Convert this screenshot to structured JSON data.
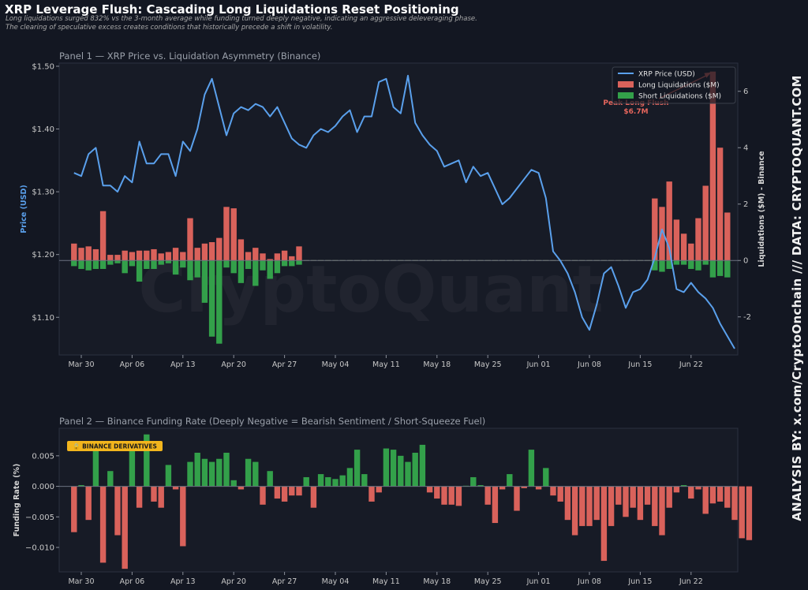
{
  "header": {
    "title": "XRP Leverage Flush: Cascading Long Liquidations Reset Positioning",
    "subtitle_1": "Long liquidations surged 832% vs the 3-month average while funding turned deeply negative, indicating an aggressive deleveraging phase.",
    "subtitle_2": "The clearing of speculative excess creates conditions that historically precede a shift in volatility."
  },
  "side_credit": "ANALYSIS BY: x.com/CryptoOnchain   ///   DATA: CRYPTOQUANT.COM",
  "watermark": "CryptoQuant",
  "colors": {
    "background": "#131722",
    "panel": "#171b26",
    "price_line": "#5aa0ec",
    "long_liq": "#d9625b",
    "short_liq": "#33a04a",
    "funding_pos": "#33a04a",
    "funding_neg": "#d9625b",
    "annotation": "#e5655c",
    "badge": "#f2b51d"
  },
  "chart_data": [
    {
      "type": "line",
      "title": "Panel 1 — XRP Price vs. Liquidation Asymmetry (Binance)",
      "ylabel": "Price (USD)",
      "y2label": "Liquidations ($M) - Binance",
      "x_ticks": [
        "Mar 30",
        "Apr 06",
        "Apr 13",
        "Apr 20",
        "Apr 27",
        "May 04",
        "May 11",
        "May 18",
        "May 25",
        "Jun 01",
        "Jun 08",
        "Jun 15",
        "Jun 22"
      ],
      "x_range": [
        "2025-03-27",
        "2025-06-27"
      ],
      "ylim": [
        1.04,
        1.505
      ],
      "y_ticks": [
        1.1,
        1.2,
        1.3,
        1.4,
        1.5
      ],
      "y_tick_labels": [
        "$1.10",
        "$1.20",
        "$1.30",
        "$1.40",
        "$1.50"
      ],
      "y2lim": [
        -3.35,
        7.0
      ],
      "y2_ticks": [
        -2,
        0,
        2,
        4,
        6
      ],
      "grid": false,
      "legend": "top-right",
      "series": [
        {
          "name": "XRP Price (USD)",
          "kind": "line",
          "x_start": "2025-03-29",
          "step_days": 1,
          "values": [
            1.33,
            1.325,
            1.36,
            1.37,
            1.31,
            1.31,
            1.3,
            1.325,
            1.315,
            1.38,
            1.345,
            1.345,
            1.36,
            1.36,
            1.325,
            1.38,
            1.365,
            1.4,
            1.455,
            1.48,
            1.435,
            1.39,
            1.425,
            1.435,
            1.43,
            1.44,
            1.435,
            1.42,
            1.435,
            1.41,
            1.385,
            1.375,
            1.37,
            1.39,
            1.4,
            1.395,
            1.405,
            1.42,
            1.43,
            1.395,
            1.42,
            1.42,
            1.475,
            1.48,
            1.435,
            1.425,
            1.485,
            1.41,
            1.39,
            1.375,
            1.365,
            1.34,
            1.345,
            1.35,
            1.315,
            1.34,
            1.325,
            1.33,
            1.305,
            1.28,
            1.29,
            1.305,
            1.32,
            1.335,
            1.33,
            1.29,
            1.205,
            1.19,
            1.17,
            1.14,
            1.1,
            1.08,
            1.12,
            1.17,
            1.18,
            1.15,
            1.115,
            1.14,
            1.145,
            1.16,
            1.195,
            1.24,
            1.21,
            1.145,
            1.14,
            1.155,
            1.14,
            1.13,
            1.115,
            1.09,
            1.07,
            1.05
          ]
        },
        {
          "name": "Long Liquidations ($M)",
          "kind": "bar",
          "x_start": "2025-03-29",
          "step_days": 1,
          "values": [
            0.6,
            0.45,
            0.5,
            0.4,
            1.75,
            0.2,
            0.2,
            0.35,
            0.3,
            0.35,
            0.35,
            0.4,
            0.25,
            0.3,
            0.45,
            0.3,
            1.5,
            0.45,
            0.6,
            0.65,
            0.8,
            1.9,
            1.85,
            0.75,
            0.3,
            0.45,
            0.25,
            0.05,
            0.25,
            0.35,
            0.15,
            0.5,
            0,
            0,
            0,
            0,
            0,
            0,
            0,
            0,
            0,
            0,
            0,
            0,
            0,
            0,
            0,
            0,
            0,
            0,
            0,
            0,
            0,
            0,
            0,
            0,
            0,
            0,
            0,
            0,
            0,
            0,
            0,
            0,
            0,
            0,
            0,
            0,
            0,
            0,
            0,
            0,
            0,
            0,
            0,
            0,
            0,
            0,
            0,
            0,
            2.2,
            1.9,
            2.8,
            1.45,
            0.95,
            0.6,
            1.5,
            2.65,
            6.7,
            4.0,
            1.7
          ]
        },
        {
          "name": "Short Liquidations ($M)",
          "kind": "bar",
          "x_start": "2025-03-29",
          "step_days": 1,
          "values": [
            -0.2,
            -0.3,
            -0.35,
            -0.3,
            -0.3,
            -0.15,
            -0.1,
            -0.45,
            -0.2,
            -0.75,
            -0.3,
            -0.3,
            -0.15,
            -0.1,
            -0.5,
            -0.25,
            -0.7,
            -0.6,
            -1.5,
            -2.7,
            -2.95,
            -0.25,
            -0.45,
            -0.8,
            -0.3,
            -0.9,
            -0.35,
            -0.65,
            -0.45,
            -0.2,
            -0.2,
            -0.15,
            0,
            0,
            0,
            0,
            0,
            0,
            0,
            0,
            0,
            0,
            0,
            0,
            0,
            0,
            0,
            0,
            0,
            0,
            0,
            0,
            0,
            0,
            0,
            0,
            0,
            0,
            0,
            0,
            0,
            0,
            0,
            0,
            0,
            0,
            0,
            0,
            0,
            0,
            0,
            0,
            0,
            0,
            0,
            0,
            0,
            0,
            0,
            0,
            -0.35,
            -0.4,
            -0.3,
            -0.15,
            -0.15,
            -0.3,
            -0.35,
            -0.15,
            -0.6,
            -0.55,
            -0.6
          ]
        }
      ],
      "annotation": {
        "line_1": "Peak Long Flush",
        "line_2": "$6.7M",
        "value": 6.7
      }
    },
    {
      "type": "bar",
      "title": "Panel 2 — Binance Funding Rate (Deeply Negative = Bearish Sentiment / Short-Squeeze Fuel)",
      "ylabel": "Funding Rate (%)",
      "badge": "🔒 BINANCE DERIVATIVES",
      "x_ticks": [
        "Mar 30",
        "Apr 06",
        "Apr 13",
        "Apr 20",
        "Apr 27",
        "May 04",
        "May 11",
        "May 18",
        "May 25",
        "Jun 01",
        "Jun 08",
        "Jun 15",
        "Jun 22"
      ],
      "ylim": [
        -0.014,
        0.0095
      ],
      "y_ticks": [
        -0.01,
        -0.005,
        0.0,
        0.005
      ],
      "y_tick_labels": [
        "−0.010",
        "−0.005",
        "0.000",
        "0.005"
      ],
      "grid": false,
      "x_start": "2025-03-29",
      "step_days": 1,
      "values": [
        -0.0075,
        0.0002,
        -0.0055,
        0.006,
        -0.0125,
        0.0025,
        -0.008,
        -0.0135,
        0.006,
        -0.0035,
        0.0085,
        -0.0025,
        -0.0035,
        0.0035,
        -0.0005,
        -0.0098,
        0.004,
        0.0055,
        0.0045,
        0.004,
        0.0045,
        0.0055,
        0.001,
        -0.0005,
        0.0045,
        0.004,
        -0.003,
        0.0025,
        -0.002,
        -0.0025,
        -0.0015,
        -0.0015,
        0.0015,
        -0.0035,
        0.002,
        0.0015,
        0.0012,
        0.0018,
        0.003,
        0.006,
        0.002,
        -0.0025,
        -0.001,
        0.0062,
        0.006,
        0.005,
        0.004,
        0.0055,
        0.0068,
        -0.001,
        -0.002,
        -0.003,
        -0.003,
        -0.0032,
        0.0001,
        0.0015,
        0.0002,
        -0.003,
        -0.006,
        -0.0005,
        0.002,
        -0.004,
        -0.0003,
        0.006,
        -0.0005,
        0.003,
        -0.0015,
        -0.0025,
        -0.0055,
        -0.008,
        -0.0065,
        -0.0065,
        -0.0055,
        -0.0122,
        -0.0065,
        -0.003,
        -0.005,
        -0.0035,
        -0.0055,
        -0.003,
        -0.0065,
        -0.008,
        -0.0035,
        -0.001,
        0.0002,
        -0.002,
        -0.0005,
        -0.0045,
        -0.0028,
        -0.0025,
        -0.0035,
        -0.0055,
        -0.0085,
        -0.0088
      ]
    }
  ]
}
